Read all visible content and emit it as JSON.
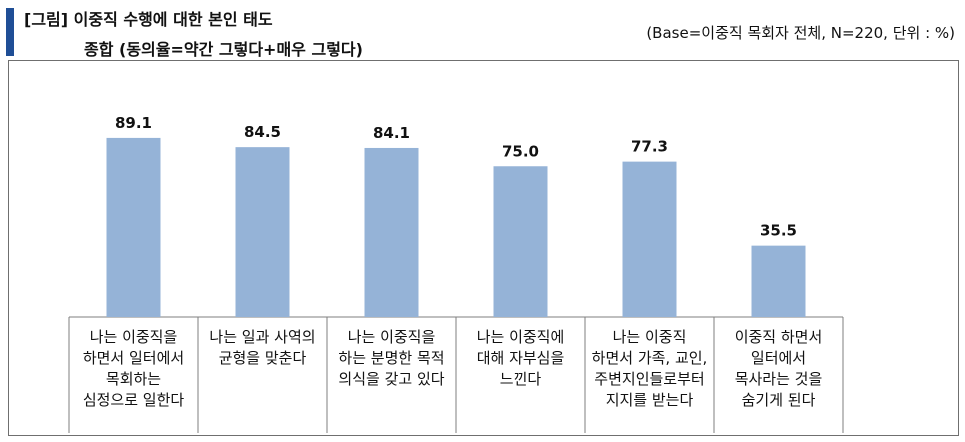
{
  "header": {
    "title_line1": "[그림] 이중직 수행에 대한 본인 태도",
    "title_line2": "종합 (동의율=약간 그렇다+매우 그렇다)",
    "base_note": "(Base=이중직 목회자 전체, N=220, 단위 : %)"
  },
  "chart_data": {
    "type": "bar",
    "categories": [
      "나는 이중직을 하면서 일터에서 목회하는 심정으로 일한다",
      "나는 일과 사역의 균형을 맞춘다",
      "나는 이중직을 하는 분명한 목적 의식을 갖고 있다",
      "나는 이중직에 대해 자부심을 느낀다",
      "나는 이중직 하면서 가족, 교인, 주변지인들로부터 지지를 받는다",
      "이중직 하면서 일터에서 목사라는 것을 숨기게 된다"
    ],
    "category_lines": [
      [
        "나는 이중직을",
        "하면서 일터에서",
        "목회하는",
        "심정으로 일한다"
      ],
      [
        "나는 일과 사역의",
        "균형을 맞춘다"
      ],
      [
        "나는 이중직을",
        "하는 분명한 목적",
        "의식을 갖고 있다"
      ],
      [
        "나는 이중직에",
        "대해 자부심을",
        "느낀다"
      ],
      [
        "나는 이중직",
        "하면서 가족, 교인,",
        "주변지인들로부터",
        "지지를 받는다"
      ],
      [
        "이중직 하면서",
        "일터에서",
        "목사라는 것을",
        "숨기게 된다"
      ]
    ],
    "values": [
      89.1,
      84.5,
      84.1,
      75.0,
      77.3,
      35.5
    ],
    "value_labels": [
      "89.1",
      "84.5",
      "84.1",
      "75.0",
      "77.3",
      "35.5"
    ],
    "bar_color": "#95b3d7",
    "ylim": [
      0,
      100
    ],
    "grid": false,
    "legend": "none"
  }
}
